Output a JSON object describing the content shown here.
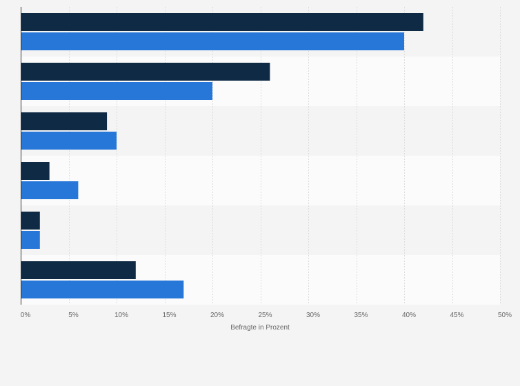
{
  "chart_data": {
    "type": "bar",
    "orientation": "horizontal",
    "categories": [
      "",
      "",
      "",
      "",
      "",
      ""
    ],
    "series": [
      {
        "values": [
          42,
          26,
          9,
          3,
          2,
          12
        ],
        "color": "#0f2a44"
      },
      {
        "values": [
          40,
          20,
          10,
          6,
          2,
          17
        ],
        "color": "#2777d9"
      }
    ],
    "xlabel": "Befragte in Prozent",
    "xlim": [
      0,
      50
    ],
    "ticks": [
      "0%",
      "5%",
      "10%",
      "15%",
      "20%",
      "25%",
      "30%",
      "35%",
      "40%",
      "45%",
      "50%"
    ],
    "grid": true,
    "legend": "none"
  }
}
